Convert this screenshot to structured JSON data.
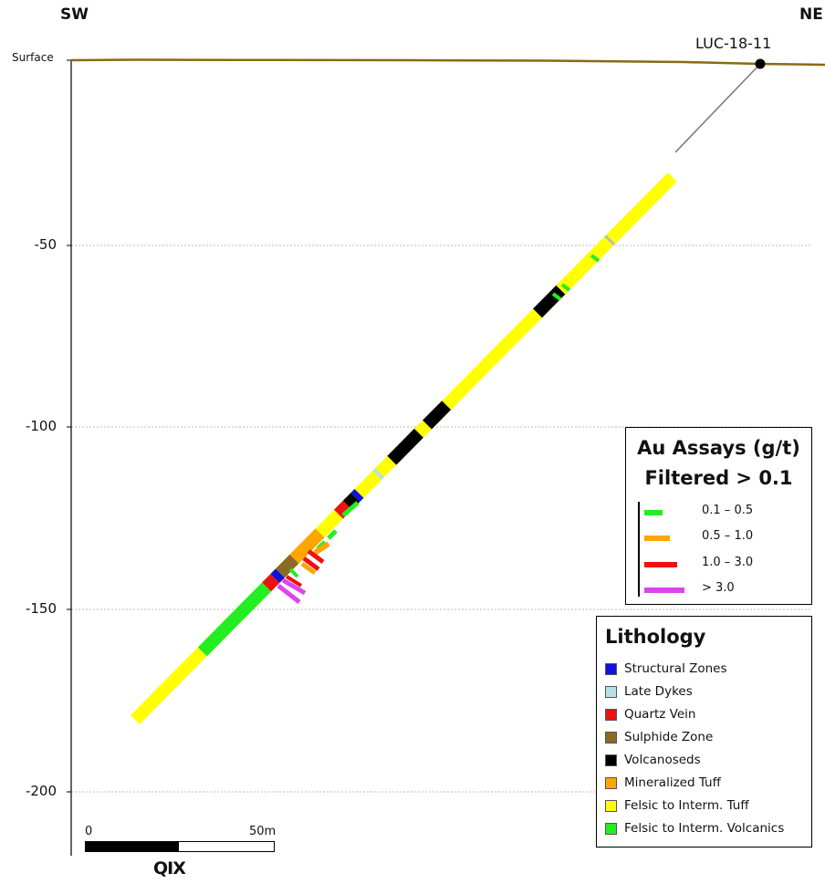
{
  "section": {
    "direction_left": "SW",
    "direction_right": "NE",
    "surface_label": "Surface",
    "hole_name": "LUC-18-11",
    "depth_labels": [
      "-50",
      "-100",
      "-150",
      "-200"
    ],
    "scale_labels": [
      "0",
      "50m"
    ],
    "logo": "QIX"
  },
  "assay_legend": {
    "title_line1": "Au Assays (g/t)",
    "title_line2": "Filtered > 0.1",
    "items": [
      {
        "label": "0.1 – 0.5",
        "color": "#22ee22"
      },
      {
        "label": "0.5 – 1.0",
        "color": "#ffa500"
      },
      {
        "label": "1.0 – 3.0",
        "color": "#ee1111"
      },
      {
        "label": "> 3.0",
        "color": "#dd44ee"
      }
    ]
  },
  "lithology_legend": {
    "title": "Lithology",
    "items": [
      {
        "label": "Structural Zones",
        "color": "#1111dd"
      },
      {
        "label": "Late Dykes",
        "color": "#b8dfe6"
      },
      {
        "label": "Quartz Vein",
        "color": "#ee1111"
      },
      {
        "label": "Sulphide Zone",
        "color": "#8b6a25"
      },
      {
        "label": "Volcanoseds",
        "color": "#000000"
      },
      {
        "label": "Mineralized Tuff",
        "color": "#ffa500"
      },
      {
        "label": "Felsic to Interm. Tuff",
        "color": "#ffff00"
      },
      {
        "label": "Felsic to Interm. Volcanics",
        "color": "#22ee22"
      }
    ]
  },
  "colors": {
    "surface_line": "#8b6914",
    "gridline": "#bbbbbb",
    "collar": "#000000"
  }
}
